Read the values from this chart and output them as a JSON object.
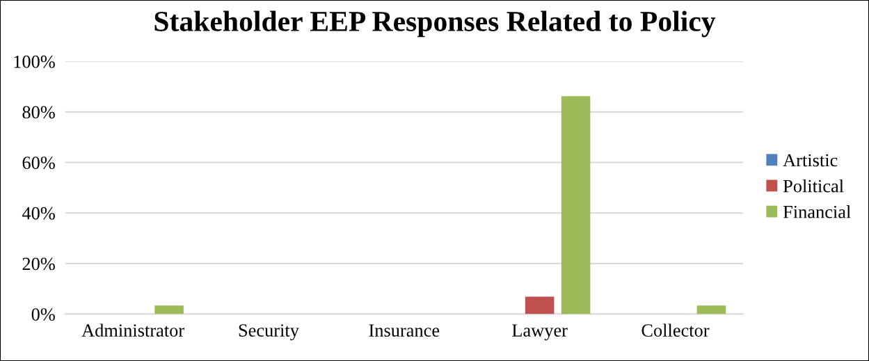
{
  "chart_data": {
    "type": "bar",
    "title": "Stakeholder EEP Responses Related to Policy",
    "categories": [
      "Administrator",
      "Security",
      "Insurance",
      "Lawyer",
      "Collector"
    ],
    "series": [
      {
        "name": "Artistic",
        "color": "#4f81bd",
        "values": [
          0,
          0,
          0,
          0,
          0
        ]
      },
      {
        "name": "Political",
        "color": "#c0504d",
        "values": [
          0,
          0,
          0,
          6.9,
          0
        ]
      },
      {
        "name": "Financial",
        "color": "#9bbb59",
        "values": [
          3.4,
          0,
          0,
          86.2,
          3.4
        ]
      }
    ],
    "ylim": [
      0,
      100
    ],
    "yticks": [
      {
        "value": 0,
        "label": "0%"
      },
      {
        "value": 20,
        "label": "20%"
      },
      {
        "value": 40,
        "label": "40%"
      },
      {
        "value": 60,
        "label": "60%"
      },
      {
        "value": 80,
        "label": "80%"
      },
      {
        "value": 100,
        "label": "100%"
      }
    ],
    "grid": "y",
    "legend": "right"
  }
}
